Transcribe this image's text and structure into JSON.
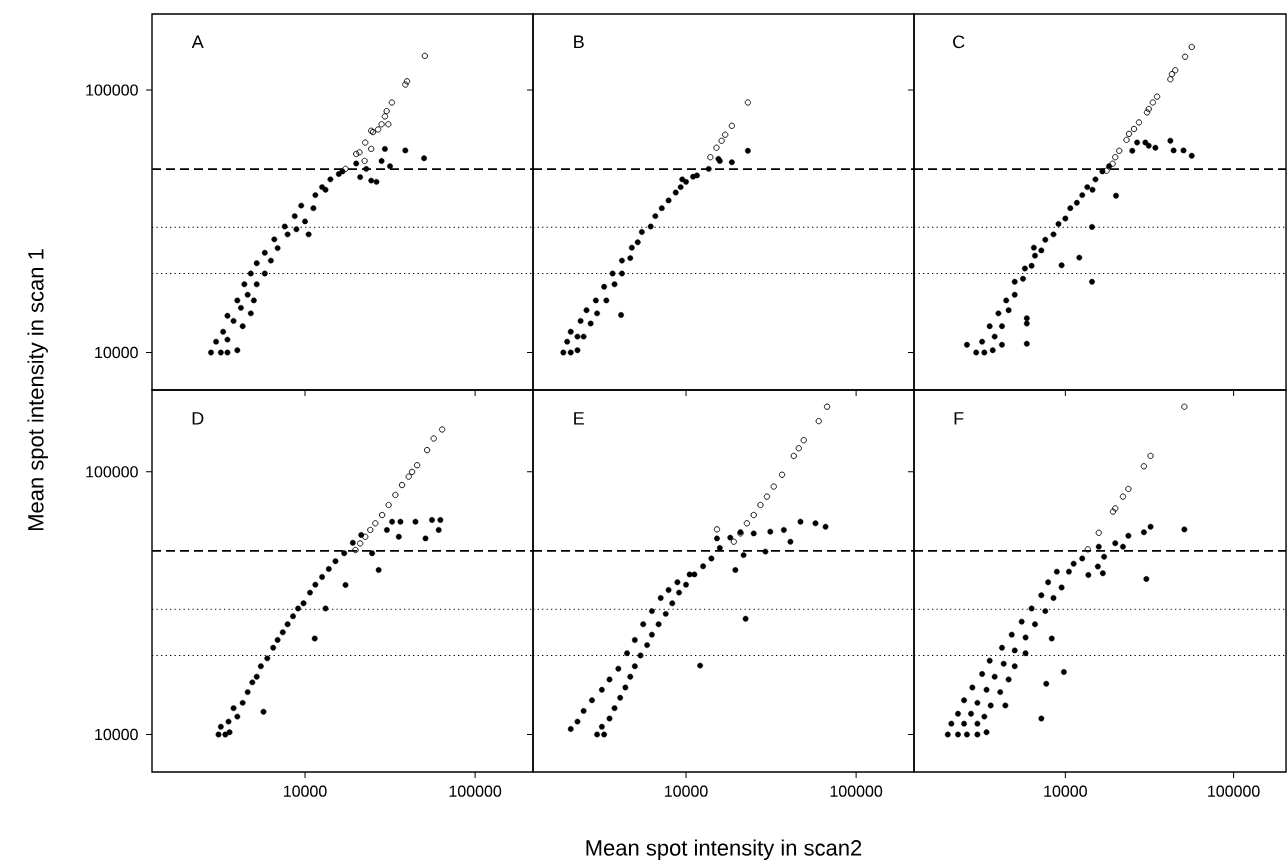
{
  "chart_data": [
    {
      "type": "scatter",
      "title": "A",
      "ylabel": "Mean spot intensity in scan 1",
      "log": "xy",
      "xlim": [
        1260,
        219000
      ],
      "ylim": [
        7200,
        195000
      ],
      "xticks": [
        10000,
        100000
      ],
      "yticks": [
        10000,
        100000
      ],
      "tick_labels": "y",
      "ref_lines": [
        {
          "axis": "y",
          "value": 50000,
          "line_style": "dashed"
        },
        {
          "axis": "y",
          "value": 30000,
          "line_style": "dotted"
        },
        {
          "axis": "y",
          "value": 20000,
          "line_style": "dotted"
        }
      ],
      "series": [
        {
          "color": "#000000",
          "marker": "circle",
          "x": [
            2800,
            3200,
            3500,
            4000,
            3000,
            3500,
            3300,
            3800,
            4300,
            3500,
            4200,
            4800,
            4000,
            4600,
            5000,
            4400,
            5200,
            4800,
            5800,
            5200,
            6300,
            5800,
            6900,
            6600,
            7900,
            7600,
            8900,
            8700,
            10000,
            10500,
            9500,
            11200,
            11500,
            13200,
            14100,
            12600,
            15800,
            16600,
            20000,
            38900,
            50100,
            29500,
            31600,
            24500,
            26300,
            21100,
            28200,
            22900
          ],
          "values": [
            10000,
            10000,
            10000,
            10200,
            11000,
            11200,
            12000,
            13200,
            12600,
            13800,
            14800,
            14100,
            15800,
            16600,
            15800,
            18200,
            18200,
            20000,
            20000,
            21900,
            22400,
            24000,
            25000,
            27000,
            28200,
            30200,
            29500,
            33100,
            31600,
            28200,
            36300,
            35500,
            39800,
            41700,
            45700,
            42700,
            47900,
            49000,
            52500,
            58900,
            55000,
            59700,
            51300,
            45200,
            44700,
            46600,
            53700,
            50100
          ]
        },
        {
          "color": "#000000",
          "marker": "circle-open",
          "x": [
            50600,
            39800,
            38900,
            32400,
            30200,
            29500,
            28200,
            30900,
            26900,
            24500,
            25100,
            22600,
            24500,
            20900,
            22400,
            20000,
            17300
          ],
          "values": [
            135000,
            108000,
            105000,
            89700,
            83200,
            79400,
            74100,
            74100,
            70800,
            70000,
            69200,
            63100,
            59700,
            57900,
            53700,
            57100,
            50100
          ]
        }
      ]
    },
    {
      "type": "scatter",
      "title": "B",
      "log": "xy",
      "xlim": [
        1260,
        219000
      ],
      "ylim": [
        7200,
        195000
      ],
      "xticks": [
        10000,
        100000
      ],
      "yticks": [
        10000,
        100000
      ],
      "tick_labels": false,
      "ref_lines": [
        {
          "axis": "y",
          "value": 50000,
          "line_style": "dashed"
        },
        {
          "axis": "y",
          "value": 30000,
          "line_style": "dotted"
        },
        {
          "axis": "y",
          "value": 20000,
          "line_style": "dotted"
        }
      ],
      "series": [
        {
          "color": "#000000",
          "marker": "circle",
          "x": [
            1900,
            2100,
            2300,
            2000,
            2300,
            2100,
            2500,
            2400,
            2750,
            2600,
            3000,
            2950,
            3400,
            3300,
            3800,
            3700,
            4200,
            4200,
            4700,
            4800,
            5200,
            5500,
            6200,
            6600,
            7200,
            7900,
            8700,
            9300,
            10000,
            11000,
            11600,
            9500,
            4150,
            23100,
            18600,
            15500,
            15800,
            13600
          ],
          "values": [
            10000,
            10000,
            10200,
            11000,
            11500,
            12000,
            11500,
            13200,
            12900,
            14500,
            14100,
            15800,
            15800,
            17800,
            18200,
            20000,
            20000,
            22400,
            22900,
            25100,
            26300,
            28800,
            30200,
            33100,
            35500,
            38000,
            40700,
            42700,
            44700,
            46800,
            47300,
            45700,
            13900,
            58700,
            53100,
            54700,
            53700,
            50100
          ]
        },
        {
          "color": "#000000",
          "marker": "circle-open",
          "x": [
            23100,
            18600,
            17000,
            16200,
            15100,
            13900
          ],
          "values": [
            89700,
            73100,
            67600,
            64100,
            60300,
            55500
          ]
        }
      ]
    },
    {
      "type": "scatter",
      "title": "C",
      "log": "xy",
      "xlim": [
        1260,
        205000
      ],
      "ylim": [
        7200,
        195000
      ],
      "xticks": [
        10000,
        100000
      ],
      "yticks": [
        10000,
        100000
      ],
      "tick_labels": false,
      "ref_lines": [
        {
          "axis": "y",
          "value": 50000,
          "line_style": "dashed"
        },
        {
          "axis": "y",
          "value": 30000,
          "line_style": "dotted"
        },
        {
          "axis": "y",
          "value": 20000,
          "line_style": "dotted"
        }
      ],
      "series": [
        {
          "color": "#000000",
          "marker": "circle",
          "x": [
            2600,
            2950,
            3300,
            3700,
            4200,
            3200,
            3800,
            3550,
            4200,
            4000,
            4600,
            4450,
            5000,
            5000,
            5600,
            5750,
            6300,
            6600,
            7200,
            7600,
            8500,
            9100,
            10000,
            10700,
            11700,
            12600,
            13500,
            15100,
            16600,
            18200,
            14500,
            26700,
            29900,
            31300,
            34300,
            42100,
            44000,
            50400,
            56400,
            25000,
            20000,
            14400,
            12100,
            9500,
            14400,
            5900,
            5900,
            5900,
            6500
          ],
          "values": [
            10700,
            10000,
            10000,
            10200,
            10700,
            11000,
            11500,
            12600,
            12600,
            14100,
            14500,
            15800,
            16600,
            18600,
            19100,
            20900,
            21400,
            23400,
            24500,
            26900,
            28200,
            30900,
            32400,
            35500,
            37200,
            39800,
            42700,
            45700,
            49000,
            51300,
            41700,
            63100,
            63100,
            61400,
            60300,
            64100,
            58900,
            58900,
            56200,
            58700,
            39600,
            30100,
            23000,
            21500,
            18600,
            13500,
            12900,
            10800,
            25100
          ]
        },
        {
          "color": "#000000",
          "marker": "circle-open",
          "x": [
            56400,
            51500,
            45000,
            43000,
            42100,
            35100,
            33100,
            31300,
            30600,
            27400,
            25600,
            23900,
            23100,
            20900,
            19800,
            19100,
            17600
          ],
          "values": [
            146000,
            134000,
            119000,
            115000,
            110000,
            94400,
            89700,
            84700,
            82200,
            75300,
            71100,
            68100,
            64600,
            58700,
            55500,
            52400,
            49300
          ]
        }
      ]
    },
    {
      "type": "scatter",
      "title": "D",
      "log": "xy",
      "xlim": [
        1260,
        219000
      ],
      "ylim": [
        7200,
        205000
      ],
      "xticks": [
        10000,
        100000
      ],
      "yticks": [
        10000,
        100000
      ],
      "ref_lines": [
        {
          "axis": "y",
          "value": 50000,
          "line_style": "dashed"
        },
        {
          "axis": "y",
          "value": 30000,
          "line_style": "dotted"
        },
        {
          "axis": "y",
          "value": 20000,
          "line_style": "dotted"
        }
      ],
      "series": [
        {
          "color": "#000000",
          "marker": "circle",
          "x": [
            3100,
            3400,
            3600,
            3200,
            3550,
            4000,
            3800,
            4300,
            4600,
            4900,
            5200,
            5500,
            6000,
            6500,
            6900,
            7400,
            7900,
            8500,
            9100,
            9800,
            10700,
            11500,
            12600,
            13800,
            15100,
            17000,
            19100,
            21400,
            32500,
            36400,
            44600,
            55800,
            62500,
            35600,
            51100,
            61100,
            30300,
            27100,
            17300,
            13200,
            11400,
            5700,
            24800
          ],
          "values": [
            10000,
            10000,
            10200,
            10700,
            11200,
            11700,
            12600,
            13200,
            14500,
            15800,
            16600,
            18200,
            19500,
            21400,
            22900,
            24500,
            26300,
            28200,
            30200,
            31600,
            34700,
            37200,
            39800,
            42700,
            45700,
            49000,
            53700,
            57500,
            64600,
            64600,
            64600,
            65600,
            65600,
            56600,
            55800,
            60100,
            60100,
            42300,
            37100,
            30200,
            23200,
            12200,
            49000
          ]
        },
        {
          "color": "#000000",
          "marker": "circle-open",
          "x": [
            64000,
            57100,
            52200,
            45600,
            42600,
            40700,
            37200,
            34000,
            31000,
            28400,
            25900,
            24200,
            22600,
            21100,
            19800
          ],
          "values": [
            145000,
            134000,
            121000,
            106000,
            100000,
            95900,
            89100,
            81700,
            74800,
            68500,
            63700,
            60100,
            56600,
            53400,
            50400
          ]
        }
      ]
    },
    {
      "type": "scatter",
      "title": "E",
      "xlabel": "Mean spot intensity in scan2",
      "log": "xy",
      "xlim": [
        1260,
        219000
      ],
      "ylim": [
        7200,
        205000
      ],
      "xticks": [
        10000,
        100000
      ],
      "yticks": [
        10000,
        100000
      ],
      "tick_labels": "x",
      "ref_lines": [
        {
          "axis": "y",
          "value": 50000,
          "line_style": "dashed"
        },
        {
          "axis": "y",
          "value": 30000,
          "line_style": "dotted"
        },
        {
          "axis": "y",
          "value": 20000,
          "line_style": "dotted"
        }
      ],
      "series": [
        {
          "color": "#000000",
          "marker": "circle",
          "x": [
            2100,
            2300,
            2500,
            2800,
            3200,
            3550,
            4000,
            4500,
            5000,
            5600,
            6300,
            7100,
            7900,
            8900,
            10500,
            3000,
            3300,
            3200,
            3550,
            3800,
            4100,
            4400,
            4700,
            5000,
            5400,
            5900,
            6300,
            6900,
            7600,
            8300,
            9100,
            10000,
            11200,
            12600,
            14100,
            15800,
            18200,
            20900,
            25000,
            31300,
            37600,
            47100,
            57700,
            66100,
            41100,
            29300,
            21800,
            19500,
            22400,
            12100,
            15200
          ],
          "values": [
            10500,
            11200,
            12300,
            13500,
            14800,
            16200,
            17800,
            20400,
            22900,
            26300,
            29500,
            33100,
            35500,
            38000,
            40700,
            10000,
            10000,
            10700,
            11500,
            12600,
            13800,
            15100,
            16600,
            18200,
            20000,
            21900,
            24000,
            26300,
            28800,
            31600,
            34700,
            37200,
            40700,
            43700,
            46800,
            51300,
            56200,
            58900,
            58300,
            59200,
            60100,
            64600,
            63700,
            61800,
            54200,
            49700,
            48200,
            42300,
            27600,
            18300,
            55800
          ]
        },
        {
          "color": "#000000",
          "marker": "circle-open",
          "x": [
            67500,
            60300,
            49200,
            46000,
            43000,
            36700,
            32800,
            29900,
            27400,
            25000,
            22800,
            20900,
            19100,
            15200
          ],
          "values": [
            177000,
            156000,
            132000,
            123000,
            115000,
            97500,
            87900,
            80500,
            74800,
            68500,
            63700,
            58300,
            54200,
            60400
          ]
        }
      ]
    },
    {
      "type": "scatter",
      "title": "F",
      "log": "xy",
      "xlim": [
        1260,
        205000
      ],
      "ylim": [
        7200,
        205000
      ],
      "xticks": [
        10000,
        100000
      ],
      "yticks": [
        10000,
        100000
      ],
      "tick_labels": "x",
      "ref_lines": [
        {
          "axis": "y",
          "value": 50000,
          "line_style": "dashed"
        },
        {
          "axis": "y",
          "value": 30000,
          "line_style": "dotted"
        },
        {
          "axis": "y",
          "value": 20000,
          "line_style": "dotted"
        }
      ],
      "series": [
        {
          "color": "#000000",
          "marker": "circle",
          "x": [
            2000,
            2300,
            2600,
            3000,
            3400,
            2100,
            2500,
            3000,
            2300,
            2750,
            3300,
            2500,
            3000,
            3600,
            2800,
            3400,
            4100,
            3200,
            3800,
            4600,
            3550,
            4300,
            5000,
            4200,
            5000,
            5800,
            4800,
            5800,
            5500,
            6600,
            6300,
            7600,
            7200,
            8500,
            7900,
            9500,
            8900,
            10500,
            11200,
            12600,
            51000,
            32100,
            29300,
            23700,
            19800,
            22000,
            15800,
            17000,
            15600,
            16700,
            13700,
            30300,
            8300,
            9800,
            7700,
            4400,
            7200
          ],
          "values": [
            10000,
            10000,
            10000,
            10000,
            10200,
            11000,
            11000,
            11000,
            12000,
            12000,
            11700,
            13500,
            13200,
            12900,
            15100,
            14800,
            14500,
            17000,
            16600,
            16200,
            19100,
            18600,
            18200,
            21400,
            20900,
            20400,
            24000,
            23400,
            26900,
            26300,
            30200,
            29500,
            33900,
            33100,
            38000,
            36300,
            41700,
            41700,
            44700,
            46800,
            60400,
            61800,
            58900,
            57100,
            53500,
            51900,
            51900,
            47500,
            43600,
            41100,
            40500,
            39100,
            23200,
            17300,
            15600,
            12900,
            11500
          ]
        },
        {
          "color": "#000000",
          "marker": "circle-open",
          "x": [
            51000,
            32100,
            29300,
            23700,
            22000,
            19800,
            19200,
            15800,
            13600
          ],
          "values": [
            177000,
            115000,
            105000,
            86100,
            80500,
            72600,
            70600,
            58600,
            50700
          ]
        }
      ]
    }
  ]
}
